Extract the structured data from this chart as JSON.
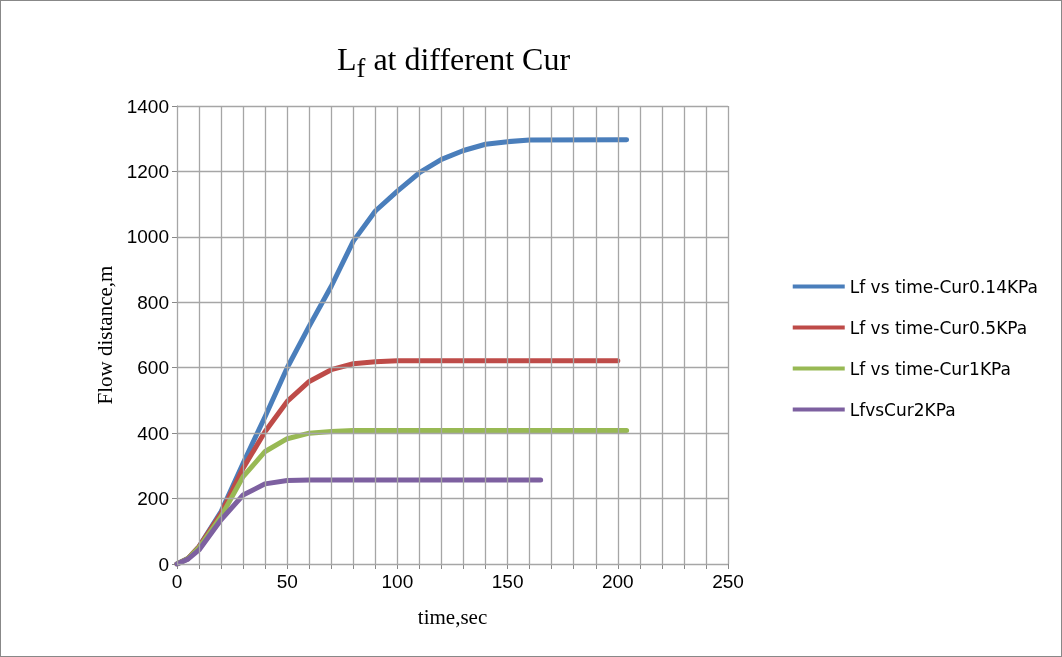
{
  "chart_data": {
    "type": "line",
    "title": "L$_{f}$ at different Cur",
    "xlabel": "time,sec",
    "ylabel": "Flow distance,m",
    "xlim": [
      0,
      250
    ],
    "ylim": [
      0,
      1400
    ],
    "xticks": [
      0,
      {
        "value": 10,
        "label": null
      },
      {
        "value": 20,
        "label": null
      },
      {
        "value": 30,
        "label": null
      },
      {
        "value": 40,
        "label": null
      },
      50,
      {
        "value": 60,
        "label": null
      },
      {
        "value": 70,
        "label": null
      },
      {
        "value": 80,
        "label": null
      },
      {
        "value": 90,
        "label": null
      },
      100,
      {
        "value": 110,
        "label": null
      },
      {
        "value": 120,
        "label": null
      },
      {
        "value": 130,
        "label": null
      },
      {
        "value": 140,
        "label": null
      },
      150,
      {
        "value": 160,
        "label": null
      },
      {
        "value": 170,
        "label": null
      },
      {
        "value": 180,
        "label": null
      },
      {
        "value": 190,
        "label": null
      },
      200,
      {
        "value": 210,
        "label": null
      },
      {
        "value": 220,
        "label": null
      },
      {
        "value": 230,
        "label": null
      },
      {
        "value": 240,
        "label": null
      },
      250
    ],
    "yticks": [
      0,
      200,
      400,
      600,
      800,
      1000,
      1200,
      1400
    ],
    "grid": true,
    "legend": "right",
    "marker": "none",
    "line_style": "solid",
    "series": [
      {
        "name": "Lf vs time-Cur0.14KPa",
        "color": "#4a7ebb",
        "x": [
          0,
          5,
          10,
          20,
          30,
          40,
          50,
          60,
          70,
          80,
          90,
          100,
          110,
          120,
          130,
          140,
          150,
          160,
          204
        ],
        "values": [
          0,
          17,
          53,
          160,
          308,
          451,
          600,
          727,
          849,
          987,
          1079,
          1140,
          1196,
          1237,
          1264,
          1283,
          1291,
          1296,
          1297
        ]
      },
      {
        "name": "Lf vs time-Cur0.5KPa",
        "color": "#be4b48",
        "x": [
          0,
          5,
          10,
          20,
          30,
          40,
          50,
          60,
          70,
          80,
          90,
          100,
          200
        ],
        "values": [
          0,
          17,
          53,
          155,
          293,
          405,
          497,
          558,
          594,
          612,
          618,
          621,
          621
        ]
      },
      {
        "name": "Lf vs time-Cur1KPa",
        "color": "#98b954",
        "x": [
          0,
          5,
          10,
          20,
          30,
          40,
          50,
          60,
          70,
          80,
          204
        ],
        "values": [
          0,
          17,
          50,
          145,
          267,
          344,
          383,
          400,
          405,
          408,
          408
        ]
      },
      {
        "name": "LfvsCur2KPa",
        "color": "#7d60a0",
        "x": [
          0,
          5,
          10,
          20,
          30,
          40,
          50,
          60,
          70,
          165
        ],
        "values": [
          0,
          15,
          43,
          135,
          211,
          245,
          255,
          257,
          257,
          257
        ]
      }
    ]
  }
}
